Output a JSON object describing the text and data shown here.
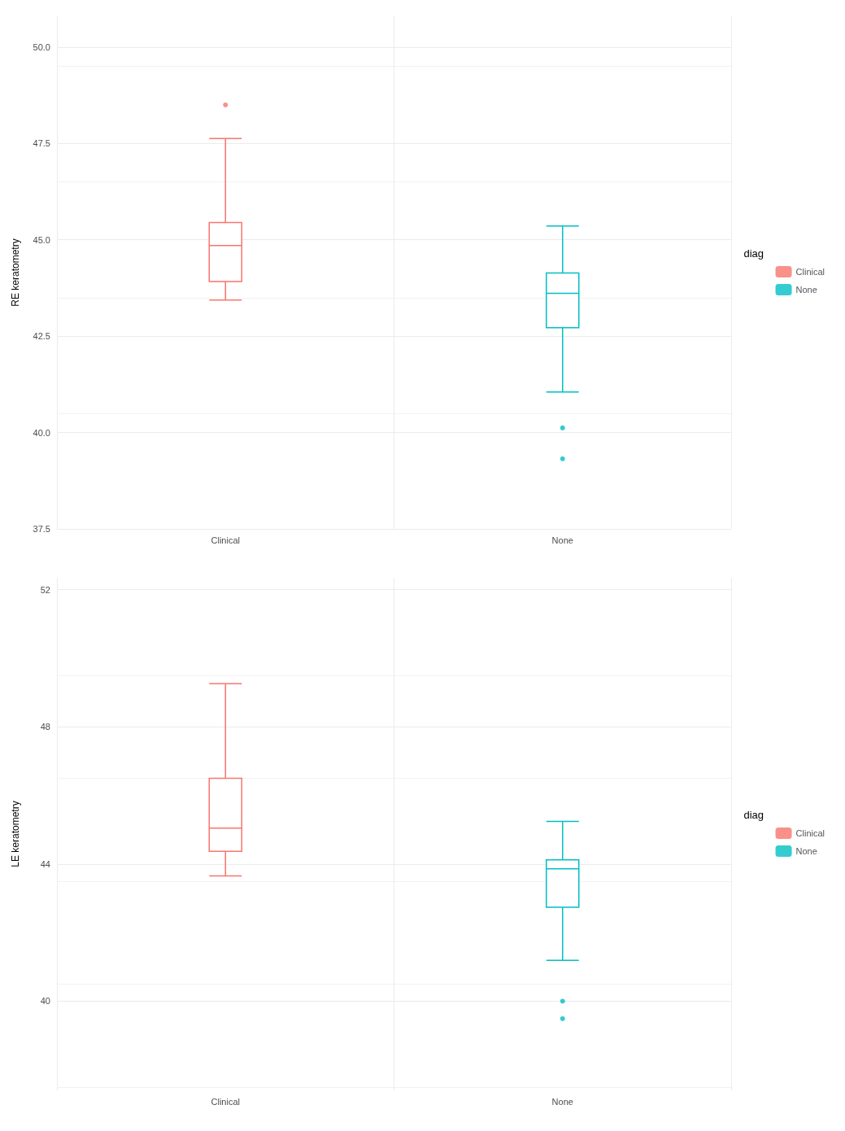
{
  "chart_data": [
    {
      "type": "box",
      "ylabel": "RE keratometry",
      "legend_title": "diag",
      "categories": [
        "Clinical",
        "None"
      ],
      "series": [
        {
          "name": "Clinical",
          "color": "#f8766d",
          "boxes": [
            {
              "low": 43.44,
              "q1": 43.92,
              "median": 44.85,
              "q3": 45.45,
              "high": 47.63,
              "outliers": [
                48.5
              ]
            },
            null
          ]
        },
        {
          "name": "None",
          "color": "#00bfc4",
          "boxes": [
            null,
            {
              "low": 41.05,
              "q1": 42.72,
              "median": 43.61,
              "q3": 44.14,
              "high": 45.36,
              "outliers": [
                40.12,
                39.32
              ]
            }
          ]
        }
      ],
      "ylim": [
        37.5,
        50.8
      ],
      "yticks": [
        {
          "value": 37.5,
          "label": "37.5"
        },
        {
          "value": 40,
          "label": "40.0"
        },
        {
          "value": 42.5,
          "label": "42.5"
        },
        {
          "value": 45,
          "label": "45.0"
        },
        {
          "value": 47.5,
          "label": "47.5"
        },
        {
          "value": 50,
          "label": "50.0"
        }
      ],
      "grid": true,
      "legend": "right"
    },
    {
      "type": "box",
      "ylabel": "LE keratometry",
      "legend_title": "diag",
      "categories": [
        "Clinical",
        "None"
      ],
      "series": [
        {
          "name": "Clinical",
          "color": "#f8766d",
          "boxes": [
            {
              "low": 43.65,
              "q1": 44.37,
              "median": 45.05,
              "q3": 46.5,
              "high": 49.26
            },
            null
          ]
        },
        {
          "name": "None",
          "color": "#00bfc4",
          "boxes": [
            null,
            {
              "low": 41.19,
              "q1": 42.74,
              "median": 43.86,
              "q3": 44.12,
              "high": 45.24,
              "outliers": [
                40.0,
                39.49
              ]
            }
          ]
        }
      ],
      "ylim": [
        37.4,
        52.35
      ],
      "yticks": [
        40,
        44,
        48,
        52
      ],
      "grid": true,
      "legend": "right"
    }
  ]
}
